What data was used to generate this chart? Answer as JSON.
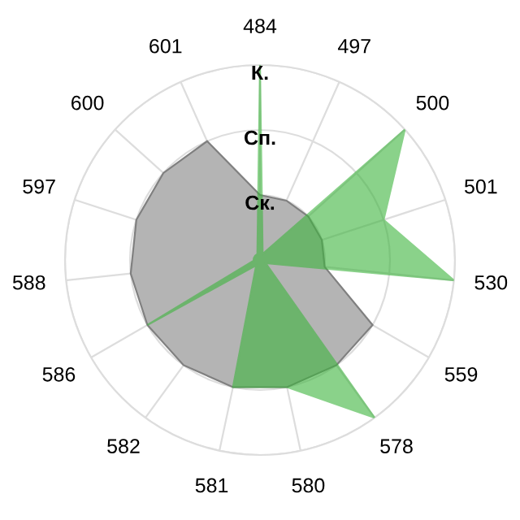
{
  "chart_data": {
    "type": "radar",
    "categories": [
      "484",
      "497",
      "500",
      "501",
      "530",
      "559",
      "578",
      "580",
      "581",
      "582",
      "586",
      "588",
      "597",
      "600",
      "601"
    ],
    "series": [
      {
        "color": "#b4b4b4",
        "values": [
          1,
          1,
          1,
          1,
          1,
          2,
          2,
          2,
          2,
          2,
          2,
          2,
          2,
          2,
          2
        ]
      },
      {
        "color": "#3cb43c",
        "values": [
          3,
          0.1,
          3,
          2,
          3,
          0.1,
          3,
          2,
          2,
          0.1,
          2,
          0.1,
          0.1,
          0.1,
          0.1
        ]
      }
    ],
    "ylim": [
      0,
      3
    ],
    "yticks": [
      {
        "value": 1,
        "label": "Ск."
      },
      {
        "value": 2,
        "label": "Сп."
      },
      {
        "value": 3,
        "label": "К."
      }
    ],
    "grid": true,
    "legend": false,
    "marker": "none"
  }
}
